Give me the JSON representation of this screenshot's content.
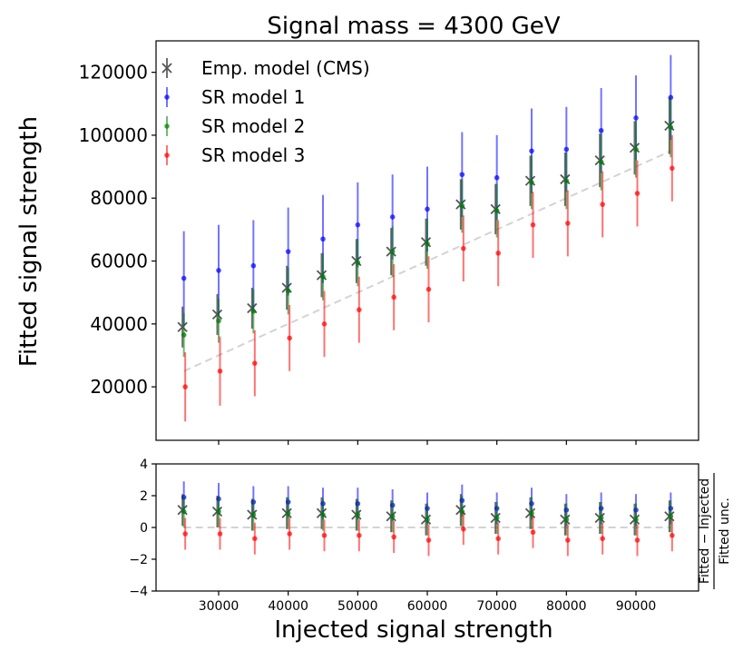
{
  "chart_data": [
    {
      "type": "scatter",
      "title": "Signal mass = 4300 GeV",
      "xlabel": "",
      "ylabel": "Fitted signal strength",
      "xlim": [
        21000,
        99000
      ],
      "ylim": [
        3000,
        130000
      ],
      "yticks": [
        20000,
        40000,
        60000,
        80000,
        100000,
        120000
      ],
      "ytick_labels": [
        "20000",
        "40000",
        "60000",
        "80000",
        "100000",
        "120000"
      ],
      "legend_position": "top-left",
      "reference_line": {
        "label": "Injected = Fitted",
        "x": [
          25000,
          95000
        ],
        "y": [
          25000,
          95000
        ],
        "color": "#d3d3d3"
      },
      "x": [
        25000,
        30000,
        35000,
        40000,
        45000,
        50000,
        55000,
        60000,
        65000,
        70000,
        75000,
        80000,
        85000,
        90000,
        95000
      ],
      "series": [
        {
          "name": "Emp. model (CMS)",
          "color": "#555555",
          "marker": "x",
          "values": [
            39000,
            43000,
            45000,
            51500,
            55500,
            60000,
            63000,
            66000,
            78000,
            76500,
            85500,
            86000,
            92000,
            96000,
            103000
          ],
          "err": [
            6500,
            6500,
            6500,
            7000,
            7000,
            7000,
            7500,
            7500,
            8000,
            8000,
            8000,
            8500,
            8500,
            8500,
            9000
          ]
        },
        {
          "name": "SR model 1",
          "color": "#0000ff",
          "marker": "o",
          "values": [
            54500,
            57000,
            58500,
            63000,
            67000,
            71500,
            74000,
            76500,
            87500,
            86500,
            95000,
            95500,
            101500,
            105500,
            112000
          ],
          "err": [
            15000,
            14500,
            14500,
            14000,
            14000,
            13500,
            13500,
            13500,
            13500,
            13500,
            13500,
            13500,
            13500,
            13500,
            13500
          ]
        },
        {
          "name": "SR model 2",
          "color": "#008000",
          "marker": "o",
          "values": [
            36500,
            41000,
            44000,
            50500,
            55000,
            59500,
            63000,
            65500,
            77500,
            76000,
            85000,
            85500,
            91500,
            95500,
            102500
          ],
          "err": [
            7000,
            7000,
            7000,
            7500,
            7500,
            7500,
            8000,
            8000,
            8500,
            8500,
            8500,
            9000,
            9000,
            9000,
            9500
          ]
        },
        {
          "name": "SR model 3",
          "color": "#ff0000",
          "marker": "o",
          "values": [
            20000,
            25000,
            27500,
            35500,
            40000,
            44500,
            48500,
            51000,
            64000,
            62500,
            71500,
            72000,
            78000,
            81500,
            89500
          ],
          "err": [
            11000,
            11000,
            10500,
            10500,
            10500,
            10500,
            10500,
            10500,
            10500,
            10500,
            10500,
            10500,
            10500,
            10500,
            10500
          ]
        }
      ]
    },
    {
      "type": "scatter",
      "title": "",
      "xlabel": "Injected signal strength",
      "ylabel": "Fitted − Injected / Fitted unc.",
      "ylabel_numerator": "Fitted − Injected",
      "ylabel_denominator": "Fitted unc.",
      "xlim": [
        21000,
        99000
      ],
      "ylim": [
        -4,
        4
      ],
      "xticks": [
        30000,
        40000,
        50000,
        60000,
        70000,
        80000,
        90000
      ],
      "xtick_labels": [
        "30000",
        "40000",
        "50000",
        "60000",
        "70000",
        "80000",
        "90000"
      ],
      "yticks": [
        -4,
        -2,
        0,
        2,
        4
      ],
      "ytick_labels": [
        "−4",
        "−2",
        "0",
        "2",
        "4"
      ],
      "reference_line": {
        "label": "zero",
        "y": 0,
        "color": "#d3d3d3"
      },
      "x": [
        25000,
        30000,
        35000,
        40000,
        45000,
        50000,
        55000,
        60000,
        65000,
        70000,
        75000,
        80000,
        85000,
        90000,
        95000
      ],
      "series": [
        {
          "name": "Emp. model (CMS)",
          "color": "#555555",
          "marker": "x",
          "values": [
            1.1,
            1.0,
            0.8,
            0.9,
            0.9,
            0.8,
            0.7,
            0.5,
            1.1,
            0.6,
            0.9,
            0.5,
            0.6,
            0.5,
            0.7
          ],
          "err": [
            1,
            1,
            1,
            1,
            1,
            1,
            1,
            1,
            1,
            1,
            1,
            1,
            1,
            1,
            1
          ]
        },
        {
          "name": "SR model 1",
          "color": "#0000ff",
          "marker": "o",
          "values": [
            1.9,
            1.8,
            1.6,
            1.6,
            1.5,
            1.5,
            1.4,
            1.2,
            1.7,
            1.2,
            1.5,
            1.1,
            1.2,
            1.1,
            1.2
          ],
          "err": [
            1,
            1,
            1,
            1,
            1,
            1,
            1,
            1,
            1,
            1,
            1,
            1,
            1,
            1,
            1
          ]
        },
        {
          "name": "SR model 2",
          "color": "#008000",
          "marker": "o",
          "values": [
            1.0,
            1.0,
            0.8,
            0.9,
            0.8,
            0.8,
            0.7,
            0.5,
            1.0,
            0.6,
            0.9,
            0.5,
            0.6,
            0.5,
            0.7
          ],
          "err": [
            1,
            1,
            1,
            1,
            1,
            1,
            1,
            1,
            1,
            1,
            1,
            1,
            1,
            1,
            1
          ]
        },
        {
          "name": "SR model 3",
          "color": "#ff0000",
          "marker": "o",
          "values": [
            -0.4,
            -0.4,
            -0.7,
            -0.4,
            -0.5,
            -0.5,
            -0.6,
            -0.8,
            -0.1,
            -0.7,
            -0.3,
            -0.8,
            -0.7,
            -0.8,
            -0.5
          ],
          "err": [
            1,
            1,
            1,
            1,
            1,
            1,
            1,
            1,
            1,
            1,
            1,
            1,
            1,
            1,
            1
          ]
        }
      ]
    }
  ]
}
